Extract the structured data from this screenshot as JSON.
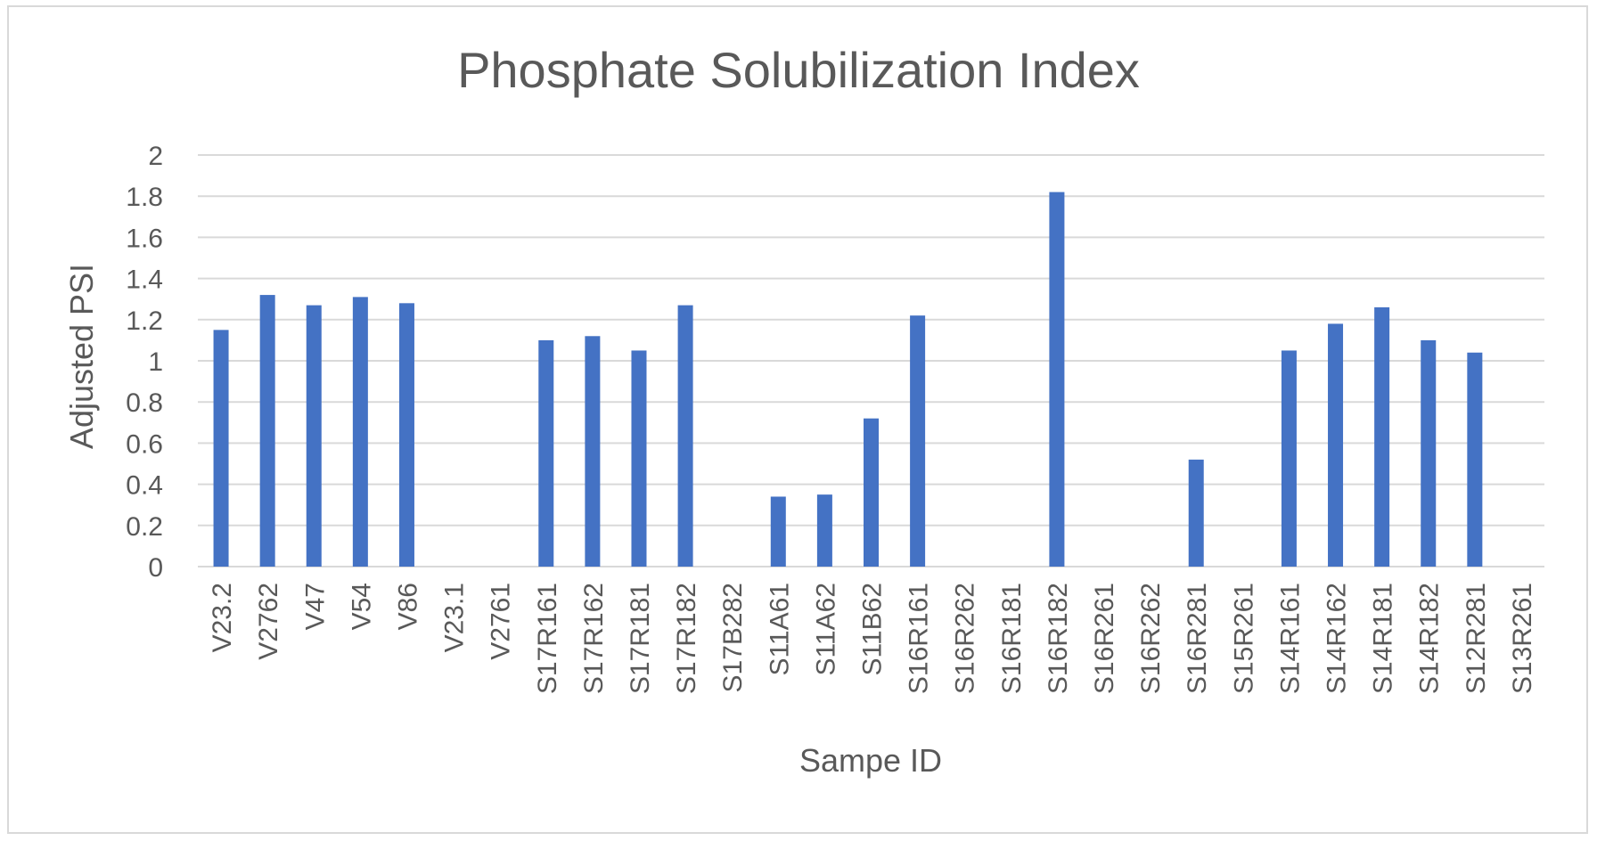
{
  "chart_data": {
    "type": "bar",
    "title": "Phosphate Solubilization Index",
    "xlabel": "Sampe ID",
    "ylabel": "Adjusted PSI",
    "ylim": [
      0,
      2
    ],
    "yticks": [
      "0",
      "0.2",
      "0.4",
      "0.6",
      "0.8",
      "1",
      "1.2",
      "1.4",
      "1.6",
      "1.8",
      "2"
    ],
    "grid": true,
    "legend": "none",
    "bar_color": "#4472C4",
    "categories": [
      "V23.2",
      "V2762",
      "V47",
      "V54",
      "V86",
      "V23.1",
      "V2761",
      "S17R161",
      "S17R162",
      "S17R181",
      "S17R182",
      "S17B282",
      "S11A61",
      "S11A62",
      "S11B62",
      "S16R161",
      "S16R262",
      "S16R181",
      "S16R182",
      "S16R261",
      "S16R262",
      "S16R281",
      "S15R261",
      "S14R161",
      "S14R162",
      "S14R181",
      "S14R182",
      "S12R281",
      "S13R261"
    ],
    "values": [
      1.15,
      1.32,
      1.27,
      1.31,
      1.28,
      0,
      0,
      1.1,
      1.12,
      1.05,
      1.27,
      0,
      0.34,
      0.35,
      0.72,
      1.22,
      0,
      0,
      1.82,
      0,
      0,
      0.52,
      0,
      1.05,
      1.18,
      1.26,
      1.1,
      1.04,
      0
    ]
  }
}
